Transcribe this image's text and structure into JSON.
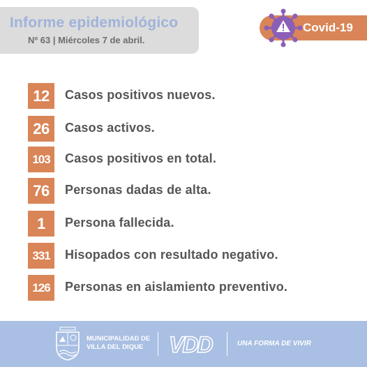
{
  "header": {
    "title": "Informe epidemiológico",
    "subtitle": "Nº 63 | Miércoles 7 de abril."
  },
  "badge": {
    "label": "Covid-19",
    "icon": "virus-alert-icon"
  },
  "stats": [
    {
      "value": "12",
      "label": "Casos positivos nuevos."
    },
    {
      "value": "26",
      "label": "Casos activos."
    },
    {
      "value": "103",
      "label": "Casos positivos en total."
    },
    {
      "value": "76",
      "label": "Personas dadas de alta."
    },
    {
      "value": "1",
      "label": "Persona fallecida."
    },
    {
      "value": "331",
      "label": "Hisopados con resultado negativo."
    },
    {
      "value": "126",
      "label": "Personas en aislamiento preventivo."
    }
  ],
  "footer": {
    "municipality_line1": "MUNICIPALIDAD DE",
    "municipality_line2": "VILLA DEL DIQUE",
    "logo_text": "VDD",
    "slogan": "UNA FORMA DE VIVIR"
  },
  "colors": {
    "accent": "#d98557",
    "title_blue": "#9fb3d9",
    "footer_blue": "#a9bfe3",
    "virus_purple": "#8b5fb8"
  }
}
